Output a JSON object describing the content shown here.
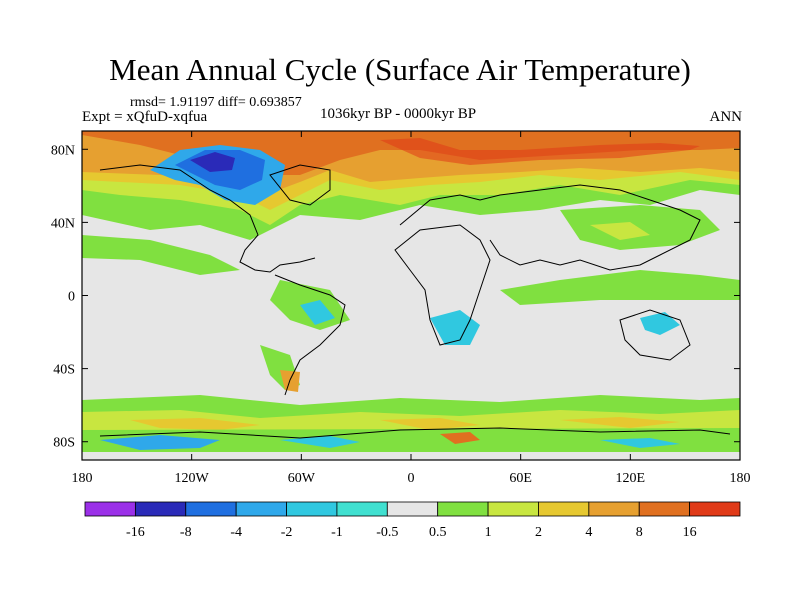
{
  "title": "Mean Annual Cycle (Surface Air Temperature)",
  "stats": "rmsd= 1.91197 diff= 0.693857",
  "experiment": "Expt = xQfuD-xqfua",
  "period": "1036kyr BP - 0000kyr BP",
  "season": "ANN",
  "map": {
    "lon_range": [
      -180,
      180
    ],
    "lat_range": [
      -90,
      90
    ],
    "lon_ticks": [
      {
        "value": -180,
        "label": "180"
      },
      {
        "value": -120,
        "label": "120W"
      },
      {
        "value": -60,
        "label": "60W"
      },
      {
        "value": 0,
        "label": "0"
      },
      {
        "value": 60,
        "label": "60E"
      },
      {
        "value": 120,
        "label": "120E"
      },
      {
        "value": 180,
        "label": "180"
      }
    ],
    "lat_ticks": [
      {
        "value": 80,
        "label": "80N"
      },
      {
        "value": 40,
        "label": "40N"
      },
      {
        "value": 0,
        "label": "0"
      },
      {
        "value": -40,
        "label": "40S"
      },
      {
        "value": -80,
        "label": "80S"
      }
    ]
  },
  "colorbar": {
    "colors": [
      "#9b30e8",
      "#2a2ab8",
      "#1f6fe0",
      "#2fa8ea",
      "#30c8e0",
      "#40e0d0",
      "#e6e6e6",
      "#80e040",
      "#c8e640",
      "#e6c830",
      "#e6a030",
      "#e07020",
      "#e03a18"
    ],
    "labels": [
      "-16",
      "-8",
      "-4",
      "-2",
      "-1",
      "-0.5",
      "0.5",
      "1",
      "2",
      "4",
      "8",
      "16"
    ]
  },
  "palette": {
    "background": "#e6e6e6",
    "green": "#80e040",
    "yellow": "#c8e640",
    "gold": "#e6c830",
    "orange": "#e6a030",
    "dark_orange": "#e07020",
    "red": "#e03a18",
    "light_blue": "#2fa8ea",
    "blue": "#1f6fe0",
    "cyan": "#30c8e0"
  }
}
